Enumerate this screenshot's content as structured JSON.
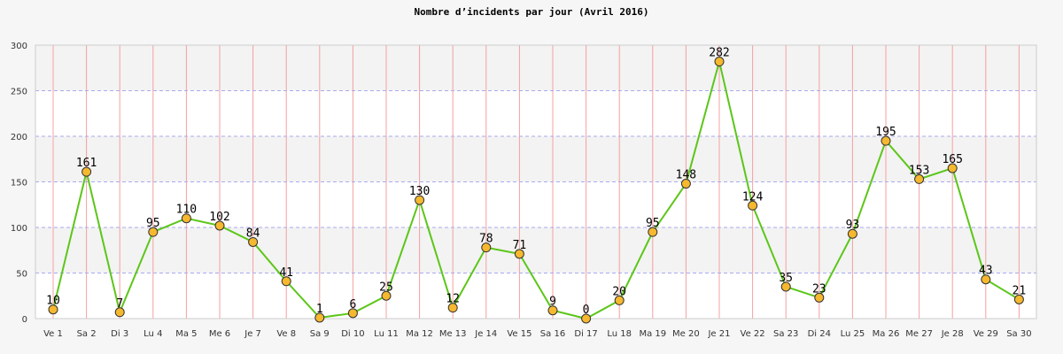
{
  "chart_data": {
    "type": "line",
    "title": "Nombre d’incidents par jour (Avril 2016)",
    "xlabel": "",
    "ylabel": "",
    "ylim": [
      0,
      300
    ],
    "yticks": [
      0,
      50,
      100,
      150,
      200,
      250,
      300
    ],
    "grid": true,
    "legend": "none",
    "categories": [
      "Ve 1",
      "Sa 2",
      "Di 3",
      "Lu 4",
      "Ma 5",
      "Me 6",
      "Je 7",
      "Ve 8",
      "Sa 9",
      "Di 10",
      "Lu 11",
      "Ma 12",
      "Me 13",
      "Je 14",
      "Ve 15",
      "Sa 16",
      "Di 17",
      "Lu 18",
      "Ma 19",
      "Me 20",
      "Je 21",
      "Ve 22",
      "Sa 23",
      "Di 24",
      "Lu 25",
      "Ma 26",
      "Me 27",
      "Je 28",
      "Ve 29",
      "Sa 30"
    ],
    "series": [
      {
        "values": [
          10,
          161,
          7,
          95,
          110,
          102,
          84,
          41,
          1,
          6,
          25,
          130,
          12,
          78,
          71,
          9,
          0,
          20,
          95,
          148,
          282,
          124,
          35,
          23,
          93,
          195,
          153,
          165,
          43,
          21
        ]
      }
    ],
    "colors": {
      "line": "#5cc619",
      "marker_fill": "#f5b82e",
      "marker_stroke": "#333333",
      "band_light": "#ffffff",
      "band_dark": "#f3f3f3",
      "vgrid": "#f4a0a0",
      "hgrid": "#aaaaee"
    }
  }
}
